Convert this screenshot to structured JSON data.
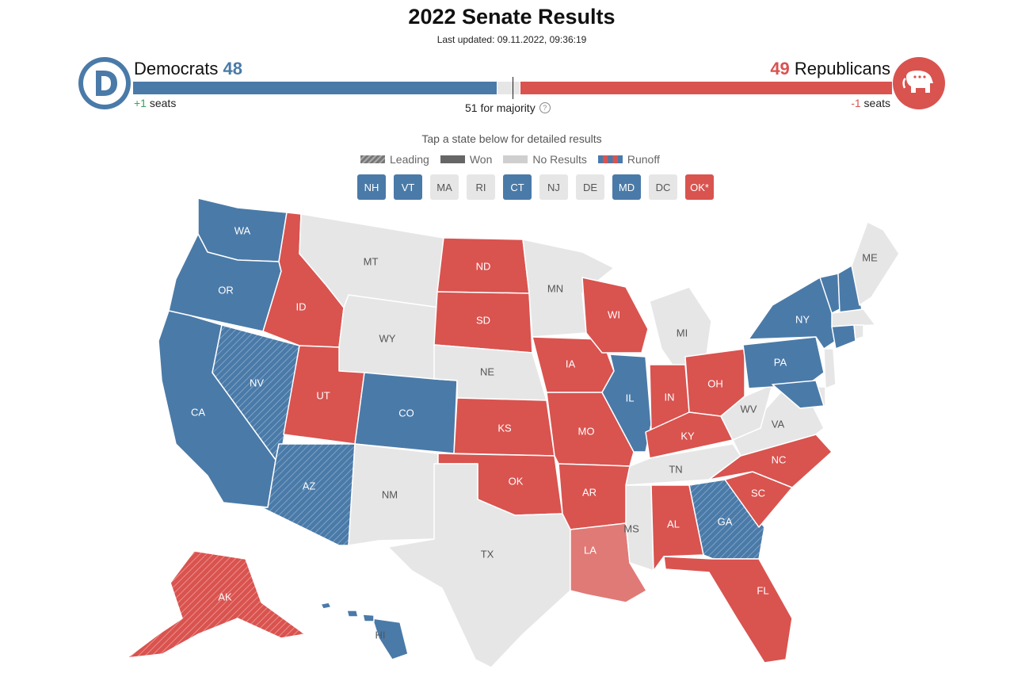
{
  "header": {
    "title": "2022 Senate Results",
    "last_updated": "Last updated: 09.11.2022, 09:36:19"
  },
  "democrats": {
    "name": "Democrats",
    "seats": "48",
    "change_sign": "+1",
    "change_label": "seats",
    "color": "#4a7aa8"
  },
  "republicans": {
    "name": "Republicans",
    "seats": "49",
    "change_sign": "-1",
    "change_label": "seats",
    "color": "#d9534f"
  },
  "majority_label": "51 for majority",
  "total_seats": 100,
  "tap_hint": "Tap a state below for detailed results",
  "legend": [
    {
      "key": "leading",
      "label": "Leading"
    },
    {
      "key": "won",
      "label": "Won"
    },
    {
      "key": "nores",
      "label": "No Results"
    },
    {
      "key": "runoff",
      "label": "Runoff"
    }
  ],
  "small_states": [
    {
      "abbr": "NH",
      "status": "D"
    },
    {
      "abbr": "VT",
      "status": "D"
    },
    {
      "abbr": "MA",
      "status": "N"
    },
    {
      "abbr": "RI",
      "status": "N"
    },
    {
      "abbr": "CT",
      "status": "D"
    },
    {
      "abbr": "NJ",
      "status": "N"
    },
    {
      "abbr": "DE",
      "status": "N"
    },
    {
      "abbr": "MD",
      "status": "D"
    },
    {
      "abbr": "DC",
      "status": "N"
    },
    {
      "abbr": "OK*",
      "status": "R"
    }
  ],
  "colors": {
    "dem": "#4a7aa8",
    "rep": "#d9534f",
    "rep_leading": "#e07a77",
    "none": "#e6e6e6",
    "none_text": "#555555",
    "runoff_a": "#4a7aa8"
  },
  "states": {
    "WA": "D-won",
    "OR": "D-won",
    "CA": "D-won",
    "NV": "D-leading",
    "AZ": "D-leading",
    "ID": "R-won",
    "MT": "none",
    "WY": "none",
    "UT": "R-won",
    "CO": "D-won",
    "NM": "none",
    "ND": "R-won",
    "SD": "R-won",
    "NE": "none",
    "KS": "R-won",
    "OK": "R-won",
    "TX": "none",
    "MN": "none",
    "IA": "R-won",
    "MO": "R-won",
    "AR": "R-won",
    "LA": "R-leading",
    "WI": "R-won",
    "IL": "D-won",
    "MI": "none",
    "IN": "R-won",
    "OH": "R-won",
    "KY": "R-won",
    "TN": "none",
    "MS": "none",
    "AL": "R-won",
    "GA": "D-leading",
    "FL": "R-won",
    "SC": "R-won",
    "NC": "R-won",
    "VA": "none",
    "WV": "none",
    "PA": "D-won",
    "NY": "D-won",
    "ME": "none",
    "AK": "R-leading",
    "HI": "D-won",
    "VT": "D-won",
    "NH": "D-won",
    "MA": "none",
    "CT": "D-won",
    "RI": "none",
    "NJ": "none",
    "DE": "none",
    "MD": "D-won"
  }
}
